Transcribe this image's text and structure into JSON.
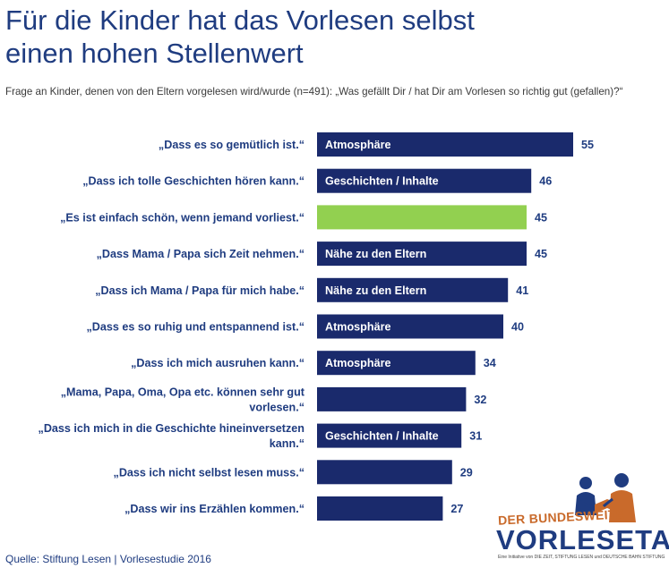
{
  "title_line1": "Für die Kinder hat das Vorlesen selbst",
  "title_line2": "einen hohen Stellenwert",
  "subtitle": "Frage an Kinder, denen von den Eltern vorgelesen wird/wurde (n=491): „Was gefällt Dir / hat Dir am Vorlesen so richtig gut (gefallen)?“",
  "source": "Quelle: Stiftung Lesen | Vorlesestudie 2016",
  "logo": {
    "line1": "DER BUNDESWEITE",
    "line2": "VORLESETAG",
    "line3": "Eine Initiative von DIE ZEIT, STIFTUNG LESEN und DEUTSCHE BAHN STIFTUNG"
  },
  "colors": {
    "bar": "#1a2a6c",
    "highlight": "#92d050",
    "title": "#1f3c80"
  },
  "chart_data": {
    "type": "bar",
    "orientation": "horizontal",
    "categories": [
      [
        "„Dass es so gemütlich ist.“"
      ],
      [
        "„Dass ich tolle Geschichten hören kann.“"
      ],
      [
        "„Es ist einfach schön, wenn jemand vorliest.“"
      ],
      [
        "„Dass Mama / Papa sich Zeit nehmen.“"
      ],
      [
        "„Dass ich Mama / Papa für mich habe.“"
      ],
      [
        "„Dass es so ruhig und entspannend ist.“"
      ],
      [
        "„Dass ich mich ausruhen kann.“"
      ],
      [
        "„Mama, Papa, Oma, Opa etc. können sehr gut",
        "vorlesen.“"
      ],
      [
        "„Dass ich mich in die Geschichte hineinversetzen",
        "kann.“"
      ],
      [
        "„Dass ich nicht selbst lesen muss.“"
      ],
      [
        "„Dass wir ins Erzählen kommen.“"
      ]
    ],
    "values": [
      55,
      46,
      45,
      45,
      41,
      40,
      34,
      32,
      31,
      29,
      27
    ],
    "bar_labels": [
      "Atmosphäre",
      "Geschichten / Inhalte",
      "",
      "Nähe zu den Eltern",
      "Nähe zu den Eltern",
      "Atmosphäre",
      "Atmosphäre",
      "",
      "Geschichten / Inhalte",
      "",
      ""
    ],
    "highlight_index": 2,
    "xlim": [
      0,
      55
    ],
    "grid": false
  }
}
